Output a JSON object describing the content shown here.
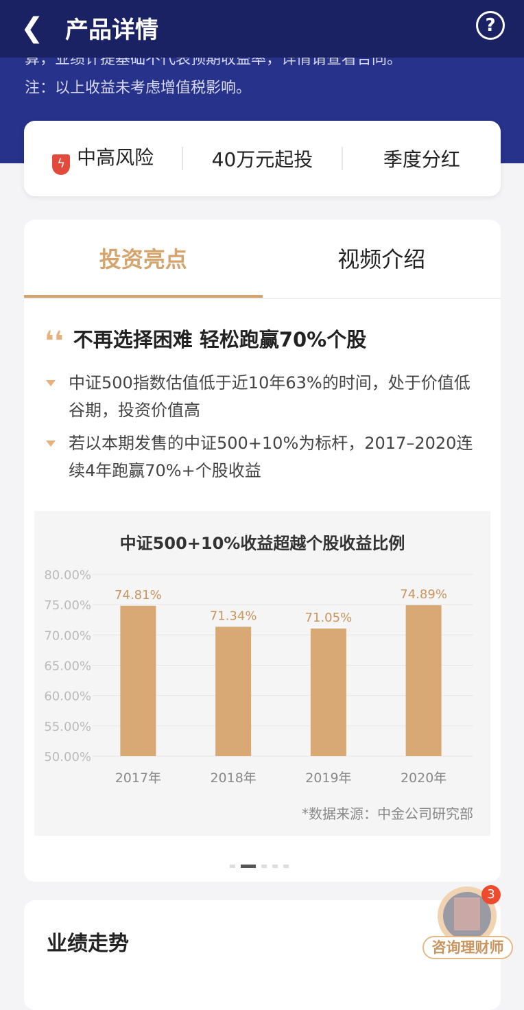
{
  "header": {
    "title": "产品详情",
    "back_icon": "chevron-left-icon",
    "help_icon": "question-circle-icon"
  },
  "notes": [
    "算，业绩计提基础不代表预期收益率，详情请查看合同。",
    "注：以上收益未考虑增值税影响。"
  ],
  "info": {
    "risk": "中高风险",
    "min_invest": "40万元起投",
    "dividend": "季度分红"
  },
  "tabs": [
    {
      "label": "投资亮点",
      "active": true
    },
    {
      "label": "视频介绍",
      "active": false
    }
  ],
  "highlight": {
    "heading": "不再选择困难 轻松跑赢70%个股",
    "bullets": [
      "中证500指数估值低于近10年63%的时间，处于价值低谷期，投资价值高",
      "若以本期发售的中证500+10%为标杆，2017–2020连续4年跑赢70%+个股收益"
    ]
  },
  "chart_data": {
    "type": "bar",
    "title": "中证500+10%收益超越个股收益比例",
    "categories": [
      "2017年",
      "2018年",
      "2019年",
      "2020年"
    ],
    "values": [
      74.81,
      71.34,
      71.05,
      74.89
    ],
    "data_labels": [
      "74.81%",
      "71.34%",
      "71.05%",
      "74.89%"
    ],
    "ylim": [
      50,
      80
    ],
    "yticks": [
      "80.00%",
      "75.00%",
      "70.00%",
      "65.00%",
      "60.00%",
      "55.00%",
      "50.00%"
    ],
    "grid": true,
    "bar_color": "#d9a975",
    "label_color": "#c8955e"
  },
  "source": "*数据来源：中金公司研究部",
  "carousel": {
    "count": 5,
    "active": 1
  },
  "performance": {
    "title": "业绩走势"
  },
  "advisor": {
    "label": "咨询理财师",
    "badge": "3"
  }
}
